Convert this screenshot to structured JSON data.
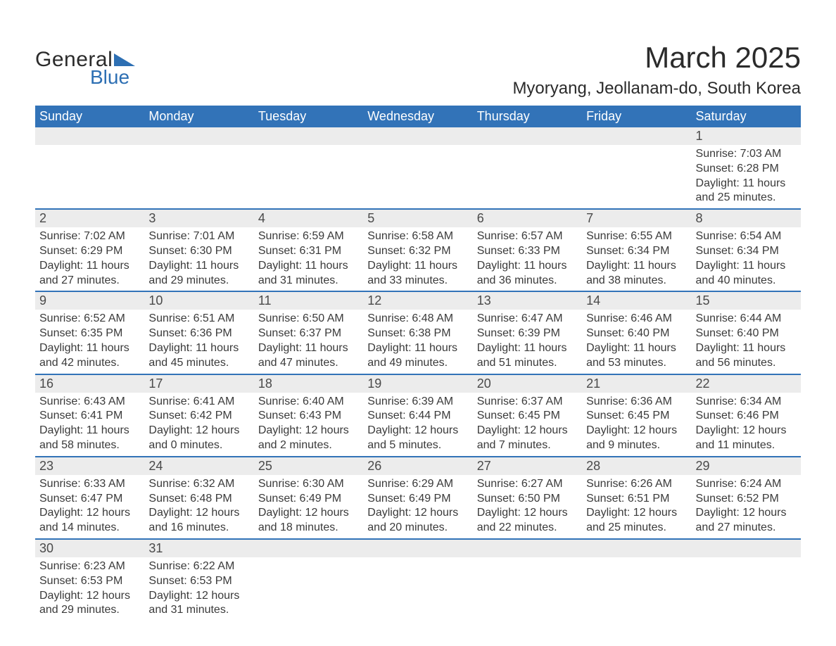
{
  "logo": {
    "general": "General",
    "blue": "Blue",
    "shape_color": "#2d6fb3"
  },
  "title": "March 2025",
  "location": "Myoryang, Jeollanam-do, South Korea",
  "colors": {
    "header_bg": "#3273b8",
    "header_text": "#ffffff",
    "daynum_bg": "#ececec",
    "row_border": "#3273b8",
    "text": "#3a3a3a"
  },
  "typography": {
    "title_fontsize": 42,
    "location_fontsize": 24,
    "dayhead_fontsize": 18,
    "daynum_fontsize": 18,
    "detail_fontsize": 16
  },
  "day_headers": [
    "Sunday",
    "Monday",
    "Tuesday",
    "Wednesday",
    "Thursday",
    "Friday",
    "Saturday"
  ],
  "weeks": [
    {
      "nums": [
        "",
        "",
        "",
        "",
        "",
        "",
        "1"
      ],
      "cells": [
        null,
        null,
        null,
        null,
        null,
        null,
        {
          "sunrise": "Sunrise: 7:03 AM",
          "sunset": "Sunset: 6:28 PM",
          "d1": "Daylight: 11 hours",
          "d2": "and 25 minutes."
        }
      ]
    },
    {
      "nums": [
        "2",
        "3",
        "4",
        "5",
        "6",
        "7",
        "8"
      ],
      "cells": [
        {
          "sunrise": "Sunrise: 7:02 AM",
          "sunset": "Sunset: 6:29 PM",
          "d1": "Daylight: 11 hours",
          "d2": "and 27 minutes."
        },
        {
          "sunrise": "Sunrise: 7:01 AM",
          "sunset": "Sunset: 6:30 PM",
          "d1": "Daylight: 11 hours",
          "d2": "and 29 minutes."
        },
        {
          "sunrise": "Sunrise: 6:59 AM",
          "sunset": "Sunset: 6:31 PM",
          "d1": "Daylight: 11 hours",
          "d2": "and 31 minutes."
        },
        {
          "sunrise": "Sunrise: 6:58 AM",
          "sunset": "Sunset: 6:32 PM",
          "d1": "Daylight: 11 hours",
          "d2": "and 33 minutes."
        },
        {
          "sunrise": "Sunrise: 6:57 AM",
          "sunset": "Sunset: 6:33 PM",
          "d1": "Daylight: 11 hours",
          "d2": "and 36 minutes."
        },
        {
          "sunrise": "Sunrise: 6:55 AM",
          "sunset": "Sunset: 6:34 PM",
          "d1": "Daylight: 11 hours",
          "d2": "and 38 minutes."
        },
        {
          "sunrise": "Sunrise: 6:54 AM",
          "sunset": "Sunset: 6:34 PM",
          "d1": "Daylight: 11 hours",
          "d2": "and 40 minutes."
        }
      ]
    },
    {
      "nums": [
        "9",
        "10",
        "11",
        "12",
        "13",
        "14",
        "15"
      ],
      "cells": [
        {
          "sunrise": "Sunrise: 6:52 AM",
          "sunset": "Sunset: 6:35 PM",
          "d1": "Daylight: 11 hours",
          "d2": "and 42 minutes."
        },
        {
          "sunrise": "Sunrise: 6:51 AM",
          "sunset": "Sunset: 6:36 PM",
          "d1": "Daylight: 11 hours",
          "d2": "and 45 minutes."
        },
        {
          "sunrise": "Sunrise: 6:50 AM",
          "sunset": "Sunset: 6:37 PM",
          "d1": "Daylight: 11 hours",
          "d2": "and 47 minutes."
        },
        {
          "sunrise": "Sunrise: 6:48 AM",
          "sunset": "Sunset: 6:38 PM",
          "d1": "Daylight: 11 hours",
          "d2": "and 49 minutes."
        },
        {
          "sunrise": "Sunrise: 6:47 AM",
          "sunset": "Sunset: 6:39 PM",
          "d1": "Daylight: 11 hours",
          "d2": "and 51 minutes."
        },
        {
          "sunrise": "Sunrise: 6:46 AM",
          "sunset": "Sunset: 6:40 PM",
          "d1": "Daylight: 11 hours",
          "d2": "and 53 minutes."
        },
        {
          "sunrise": "Sunrise: 6:44 AM",
          "sunset": "Sunset: 6:40 PM",
          "d1": "Daylight: 11 hours",
          "d2": "and 56 minutes."
        }
      ]
    },
    {
      "nums": [
        "16",
        "17",
        "18",
        "19",
        "20",
        "21",
        "22"
      ],
      "cells": [
        {
          "sunrise": "Sunrise: 6:43 AM",
          "sunset": "Sunset: 6:41 PM",
          "d1": "Daylight: 11 hours",
          "d2": "and 58 minutes."
        },
        {
          "sunrise": "Sunrise: 6:41 AM",
          "sunset": "Sunset: 6:42 PM",
          "d1": "Daylight: 12 hours",
          "d2": "and 0 minutes."
        },
        {
          "sunrise": "Sunrise: 6:40 AM",
          "sunset": "Sunset: 6:43 PM",
          "d1": "Daylight: 12 hours",
          "d2": "and 2 minutes."
        },
        {
          "sunrise": "Sunrise: 6:39 AM",
          "sunset": "Sunset: 6:44 PM",
          "d1": "Daylight: 12 hours",
          "d2": "and 5 minutes."
        },
        {
          "sunrise": "Sunrise: 6:37 AM",
          "sunset": "Sunset: 6:45 PM",
          "d1": "Daylight: 12 hours",
          "d2": "and 7 minutes."
        },
        {
          "sunrise": "Sunrise: 6:36 AM",
          "sunset": "Sunset: 6:45 PM",
          "d1": "Daylight: 12 hours",
          "d2": "and 9 minutes."
        },
        {
          "sunrise": "Sunrise: 6:34 AM",
          "sunset": "Sunset: 6:46 PM",
          "d1": "Daylight: 12 hours",
          "d2": "and 11 minutes."
        }
      ]
    },
    {
      "nums": [
        "23",
        "24",
        "25",
        "26",
        "27",
        "28",
        "29"
      ],
      "cells": [
        {
          "sunrise": "Sunrise: 6:33 AM",
          "sunset": "Sunset: 6:47 PM",
          "d1": "Daylight: 12 hours",
          "d2": "and 14 minutes."
        },
        {
          "sunrise": "Sunrise: 6:32 AM",
          "sunset": "Sunset: 6:48 PM",
          "d1": "Daylight: 12 hours",
          "d2": "and 16 minutes."
        },
        {
          "sunrise": "Sunrise: 6:30 AM",
          "sunset": "Sunset: 6:49 PM",
          "d1": "Daylight: 12 hours",
          "d2": "and 18 minutes."
        },
        {
          "sunrise": "Sunrise: 6:29 AM",
          "sunset": "Sunset: 6:49 PM",
          "d1": "Daylight: 12 hours",
          "d2": "and 20 minutes."
        },
        {
          "sunrise": "Sunrise: 6:27 AM",
          "sunset": "Sunset: 6:50 PM",
          "d1": "Daylight: 12 hours",
          "d2": "and 22 minutes."
        },
        {
          "sunrise": "Sunrise: 6:26 AM",
          "sunset": "Sunset: 6:51 PM",
          "d1": "Daylight: 12 hours",
          "d2": "and 25 minutes."
        },
        {
          "sunrise": "Sunrise: 6:24 AM",
          "sunset": "Sunset: 6:52 PM",
          "d1": "Daylight: 12 hours",
          "d2": "and 27 minutes."
        }
      ]
    },
    {
      "nums": [
        "30",
        "31",
        "",
        "",
        "",
        "",
        ""
      ],
      "cells": [
        {
          "sunrise": "Sunrise: 6:23 AM",
          "sunset": "Sunset: 6:53 PM",
          "d1": "Daylight: 12 hours",
          "d2": "and 29 minutes."
        },
        {
          "sunrise": "Sunrise: 6:22 AM",
          "sunset": "Sunset: 6:53 PM",
          "d1": "Daylight: 12 hours",
          "d2": "and 31 minutes."
        },
        null,
        null,
        null,
        null,
        null
      ]
    }
  ]
}
